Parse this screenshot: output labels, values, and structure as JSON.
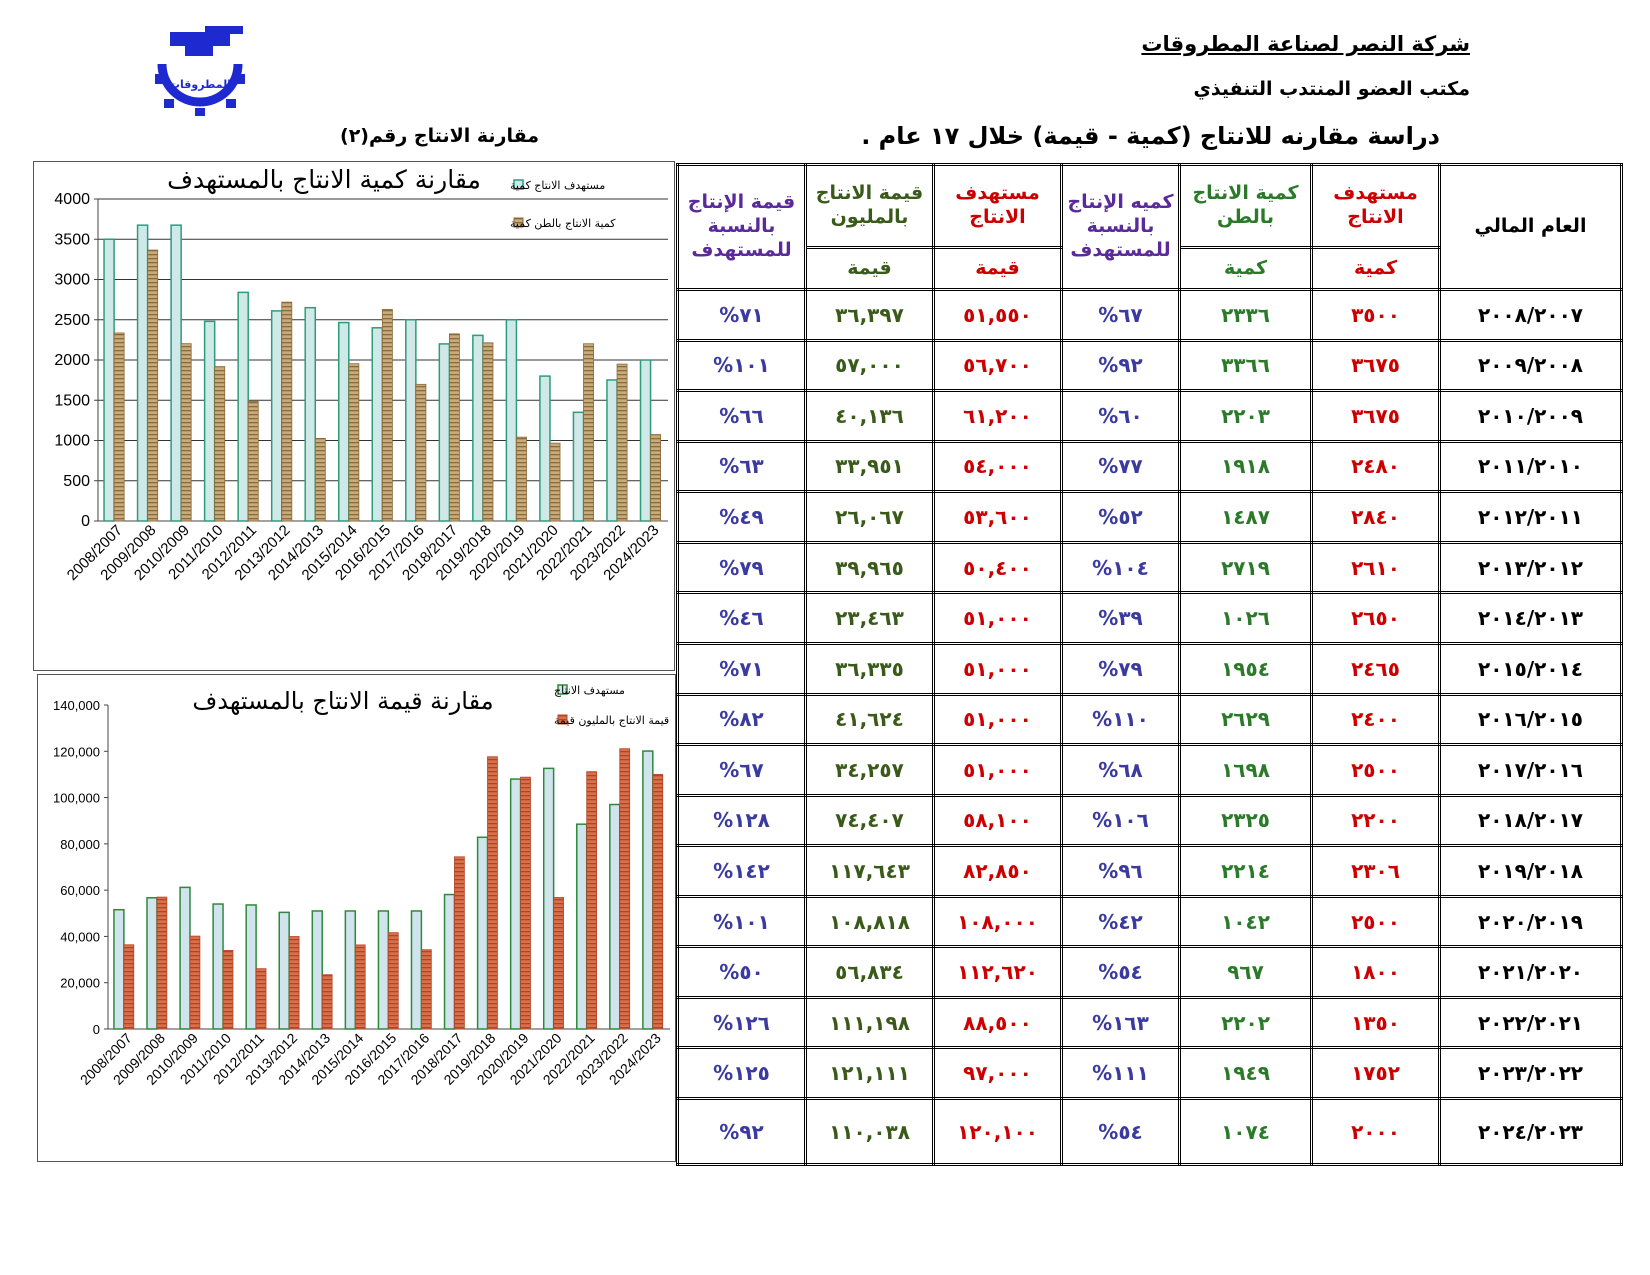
{
  "header": {
    "company": "شركة النصر لصناعة المطروقات",
    "office": "مكتب العضو المنتدب التنفيذي",
    "study_title": "دراسة مقارنه للانتاج (كمية - قيمة) خلال ١٧ عام .",
    "chart_number": "مقارنة الانتاج رقم(٢)",
    "logo_text": "المطروقات"
  },
  "colors": {
    "qty_target": "#cfe8e8",
    "qty_target_border": "#2e9c7a",
    "qty_actual": "#c8ab7c",
    "val_target": "#cfe4ec",
    "val_target_border": "#2e8a3a",
    "val_actual": "#d8704a",
    "logo": "#1e2ad0"
  },
  "table": {
    "headers": {
      "year": "العام المالي",
      "qty_target_top": "مستهدف الانتاج",
      "qty_target_bottom": "كمية",
      "qty_actual_top": "كمية الانتاج بالطن",
      "qty_actual_bottom": "كمية",
      "qty_pct": "كميه الإنتاج بالنسبة للمستهدف",
      "val_target_top": "مستهدف الانتاج",
      "val_target_bottom": "قيمة",
      "val_actual_top": "قيمة الانتاج بالمليون",
      "val_actual_bottom": "قيمة",
      "val_pct": "قيمة الإنتاج بالنسبة للمستهدف"
    },
    "rows": [
      {
        "year": "٢٠٠٨/٢٠٠٧",
        "qty_target": "٣٥٠٠",
        "qty_actual": "٢٣٣٦",
        "qty_pct": "%٦٧",
        "val_target": "٥١,٥٥٠",
        "val_actual": "٣٦,٣٩٧",
        "val_pct": "%٧١"
      },
      {
        "year": "٢٠٠٩/٢٠٠٨",
        "qty_target": "٣٦٧٥",
        "qty_actual": "٣٣٦٦",
        "qty_pct": "%٩٢",
        "val_target": "٥٦,٧٠٠",
        "val_actual": "٥٧,٠٠٠",
        "val_pct": "%١٠١"
      },
      {
        "year": "٢٠١٠/٢٠٠٩",
        "qty_target": "٣٦٧٥",
        "qty_actual": "٢٢٠٣",
        "qty_pct": "%٦٠",
        "val_target": "٦١,٢٠٠",
        "val_actual": "٤٠,١٣٦",
        "val_pct": "%٦٦"
      },
      {
        "year": "٢٠١١/٢٠١٠",
        "qty_target": "٢٤٨٠",
        "qty_actual": "١٩١٨",
        "qty_pct": "%٧٧",
        "val_target": "٥٤,٠٠٠",
        "val_actual": "٣٣,٩٥١",
        "val_pct": "%٦٣"
      },
      {
        "year": "٢٠١٢/٢٠١١",
        "qty_target": "٢٨٤٠",
        "qty_actual": "١٤٨٧",
        "qty_pct": "%٥٢",
        "val_target": "٥٣,٦٠٠",
        "val_actual": "٢٦,٠٦٧",
        "val_pct": "%٤٩"
      },
      {
        "year": "٢٠١٣/٢٠١٢",
        "qty_target": "٢٦١٠",
        "qty_actual": "٢٧١٩",
        "qty_pct": "%١٠٤",
        "val_target": "٥٠,٤٠٠",
        "val_actual": "٣٩,٩٦٥",
        "val_pct": "%٧٩"
      },
      {
        "year": "٢٠١٤/٢٠١٣",
        "qty_target": "٢٦٥٠",
        "qty_actual": "١٠٢٦",
        "qty_pct": "%٣٩",
        "val_target": "٥١,٠٠٠",
        "val_actual": "٢٣,٤٦٣",
        "val_pct": "%٤٦"
      },
      {
        "year": "٢٠١٥/٢٠١٤",
        "qty_target": "٢٤٦٥",
        "qty_actual": "١٩٥٤",
        "qty_pct": "%٧٩",
        "val_target": "٥١,٠٠٠",
        "val_actual": "٣٦,٣٣٥",
        "val_pct": "%٧١"
      },
      {
        "year": "٢٠١٦/٢٠١٥",
        "qty_target": "٢٤٠٠",
        "qty_actual": "٢٦٢٩",
        "qty_pct": "%١١٠",
        "val_target": "٥١,٠٠٠",
        "val_actual": "٤١,٦٢٤",
        "val_pct": "%٨٢"
      },
      {
        "year": "٢٠١٧/٢٠١٦",
        "qty_target": "٢٥٠٠",
        "qty_actual": "١٦٩٨",
        "qty_pct": "%٦٨",
        "val_target": "٥١,٠٠٠",
        "val_actual": "٣٤,٢٥٧",
        "val_pct": "%٦٧"
      },
      {
        "year": "٢٠١٨/٢٠١٧",
        "qty_target": "٢٢٠٠",
        "qty_actual": "٢٣٢٥",
        "qty_pct": "%١٠٦",
        "val_target": "٥٨,١٠٠",
        "val_actual": "٧٤,٤٠٧",
        "val_pct": "%١٢٨"
      },
      {
        "year": "٢٠١٩/٢٠١٨",
        "qty_target": "٢٣٠٦",
        "qty_actual": "٢٢١٤",
        "qty_pct": "%٩٦",
        "val_target": "٨٢,٨٥٠",
        "val_actual": "١١٧,٦٤٣",
        "val_pct": "%١٤٢"
      },
      {
        "year": "٢٠٢٠/٢٠١٩",
        "qty_target": "٢٥٠٠",
        "qty_actual": "١٠٤٢",
        "qty_pct": "%٤٢",
        "val_target": "١٠٨,٠٠٠",
        "val_actual": "١٠٨,٨١٨",
        "val_pct": "%١٠١"
      },
      {
        "year": "٢٠٢١/٢٠٢٠",
        "qty_target": "١٨٠٠",
        "qty_actual": "٩٦٧",
        "qty_pct": "%٥٤",
        "val_target": "١١٢,٦٢٠",
        "val_actual": "٥٦,٨٣٤",
        "val_pct": "%٥٠"
      },
      {
        "year": "٢٠٢٢/٢٠٢١",
        "qty_target": "١٣٥٠",
        "qty_actual": "٢٢٠٢",
        "qty_pct": "%١٦٣",
        "val_target": "٨٨,٥٠٠",
        "val_actual": "١١١,١٩٨",
        "val_pct": "%١٢٦"
      },
      {
        "year": "٢٠٢٣/٢٠٢٢",
        "qty_target": "١٧٥٢",
        "qty_actual": "١٩٤٩",
        "qty_pct": "%١١١",
        "val_target": "٩٧,٠٠٠",
        "val_actual": "١٢١,١١١",
        "val_pct": "%١٢٥"
      },
      {
        "year": "٢٠٢٤/٢٠٢٣",
        "qty_target": "٢٠٠٠",
        "qty_actual": "١٠٧٤",
        "qty_pct": "%٥٤",
        "val_target": "١٢٠,١٠٠",
        "val_actual": "١١٠,٠٣٨",
        "val_pct": "%٩٢"
      }
    ]
  },
  "chart_data": [
    {
      "type": "bar",
      "title": "مقارنة كمية الانتاج بالمستهدف",
      "categories": [
        "2008/2007",
        "2009/2008",
        "2010/2009",
        "2011/2010",
        "2012/2011",
        "2013/2012",
        "2014/2013",
        "2015/2014",
        "2016/2015",
        "2017/2016",
        "2018/2017",
        "2019/2018",
        "2020/2019",
        "2021/2020",
        "2022/2021",
        "2023/2022",
        "2024/2023"
      ],
      "series": [
        {
          "name": "مستهدف الانتاج كمية",
          "values": [
            3500,
            3675,
            3675,
            2480,
            2840,
            2610,
            2650,
            2465,
            2400,
            2500,
            2200,
            2306,
            2500,
            1800,
            1350,
            1752,
            2000
          ]
        },
        {
          "name": "كمية الانتاج بالطن كمية",
          "values": [
            2336,
            3366,
            2203,
            1918,
            1487,
            2719,
            1026,
            1954,
            2629,
            1698,
            2325,
            2214,
            1042,
            967,
            2202,
            1949,
            1074
          ]
        }
      ],
      "ylim": [
        0,
        4000
      ],
      "yticks": [
        "0",
        "500",
        "1000",
        "1500",
        "2000",
        "2500",
        "3000",
        "3500",
        "4000"
      ],
      "grid": true,
      "legend": "top-right"
    },
    {
      "type": "bar",
      "title": "مقارنة قيمة الانتاج بالمستهدف",
      "categories": [
        "2008/2007",
        "2009/2008",
        "2010/2009",
        "2011/2010",
        "2012/2011",
        "2013/2012",
        "2014/2013",
        "2015/2014",
        "2016/2015",
        "2017/2016",
        "2018/2017",
        "2019/2018",
        "2020/2019",
        "2021/2020",
        "2022/2021",
        "2023/2022",
        "2024/2023"
      ],
      "series": [
        {
          "name": "مستهدف الانتاج",
          "values": [
            51550,
            56700,
            61200,
            54000,
            53600,
            50400,
            51000,
            51000,
            51000,
            51000,
            58100,
            82850,
            108000,
            112620,
            88500,
            97000,
            120100
          ]
        },
        {
          "name": "قيمة الانتاج بالمليون قيمة",
          "values": [
            36397,
            57000,
            40136,
            33951,
            26067,
            39965,
            23463,
            36335,
            41624,
            34257,
            74407,
            117643,
            108818,
            56834,
            111198,
            121111,
            110038
          ]
        }
      ],
      "ylim": [
        0,
        140000
      ],
      "yticks": [
        "0",
        "20,000",
        "40,000",
        "60,000",
        "80,000",
        "100,000",
        "120,000",
        "140,000"
      ],
      "grid": false,
      "legend": "top-right"
    }
  ]
}
